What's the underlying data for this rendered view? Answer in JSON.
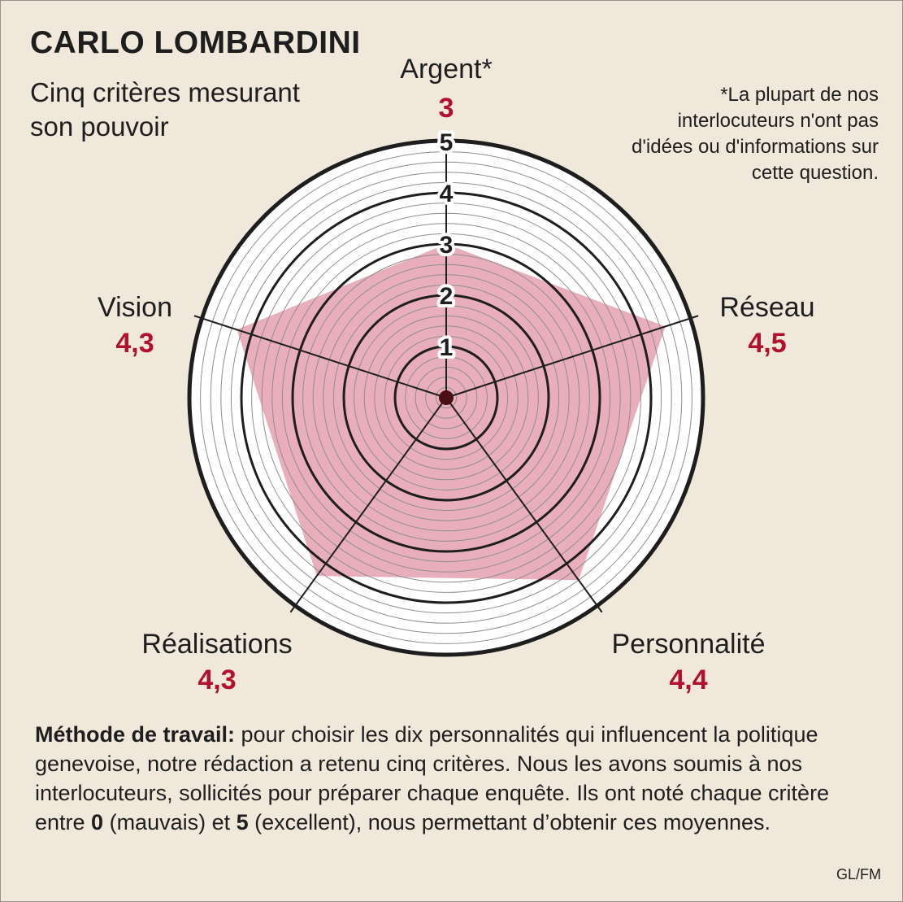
{
  "header": {
    "title": "CARLO LOMBARDINI",
    "subtitle_line1": "Cinq critères mesurant",
    "subtitle_line2": "son pouvoir",
    "footnote": "*La plupart de nos interlocuteurs n'ont pas d'idées ou d'informations sur cette question."
  },
  "chart_data": {
    "type": "radar",
    "axes": [
      {
        "name": "Argent*",
        "value_label": "3",
        "value": 3.0
      },
      {
        "name": "Réseau",
        "value_label": "4,5",
        "value": 4.5
      },
      {
        "name": "Personnalité",
        "value_label": "4,4",
        "value": 4.4
      },
      {
        "name": "Réalisations",
        "value_label": "4,3",
        "value": 4.3
      },
      {
        "name": "Vision",
        "value_label": "4,3",
        "value": 4.3
      }
    ],
    "scale": {
      "min": 0,
      "max": 5,
      "ticks": [
        "1",
        "2",
        "3",
        "4",
        "5"
      ]
    },
    "colors": {
      "fill": "#e8aebb",
      "value_text": "#b3102e",
      "background": "#f1e8dc"
    }
  },
  "method": {
    "label": "Méthode de travail:",
    "text1": " pour choisir les dix personnalités qui influencent la politique genevoise, notre rédaction a retenu cinq critères. Nous les avons soumis à nos interlocuteurs, sollicités pour préparer chaque enquête. Ils ont noté chaque critère entre ",
    "low_value": "0",
    "text2": " (mauvais) et ",
    "high_value": "5",
    "text3": " (excellent), nous permettant d’obtenir ces moyennes."
  },
  "credit": "GL/FM"
}
